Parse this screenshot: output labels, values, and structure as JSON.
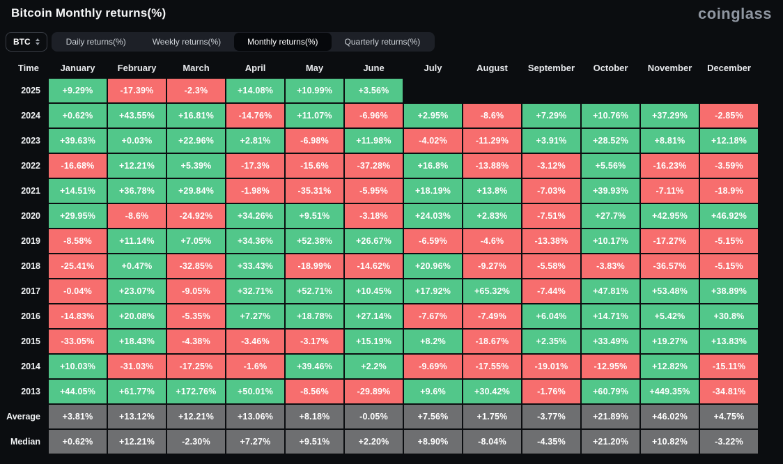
{
  "page": {
    "title": "Bitcoin Monthly returns(%)",
    "logo": "coinglass"
  },
  "toolbar": {
    "symbol_select": {
      "value": "BTC",
      "icon": "updown-chevron-icon"
    },
    "tabs": [
      {
        "label": "Daily returns(%)",
        "active": false
      },
      {
        "label": "Weekly returns(%)",
        "active": false
      },
      {
        "label": "Monthly returns(%)",
        "active": true
      },
      {
        "label": "Quarterly returns(%)",
        "active": false
      }
    ]
  },
  "colors": {
    "bg": "#0b0d10",
    "positive": "#52c78a",
    "negative": "#f76e6e",
    "summary": "#6e6f71",
    "tabbar_bg": "#1d2027",
    "active_tab_bg": "#06080b"
  },
  "table": {
    "time_header": "Time",
    "columns": [
      "January",
      "February",
      "March",
      "April",
      "May",
      "June",
      "July",
      "August",
      "September",
      "October",
      "November",
      "December"
    ],
    "rows": [
      {
        "time": "2025",
        "type": "year",
        "values": [
          "+9.29%",
          "-17.39%",
          "-2.3%",
          "+14.08%",
          "+10.99%",
          "+3.56%",
          null,
          null,
          null,
          null,
          null,
          null
        ]
      },
      {
        "time": "2024",
        "type": "year",
        "values": [
          "+0.62%",
          "+43.55%",
          "+16.81%",
          "-14.76%",
          "+11.07%",
          "-6.96%",
          "+2.95%",
          "-8.6%",
          "+7.29%",
          "+10.76%",
          "+37.29%",
          "-2.85%"
        ]
      },
      {
        "time": "2023",
        "type": "year",
        "values": [
          "+39.63%",
          "+0.03%",
          "+22.96%",
          "+2.81%",
          "-6.98%",
          "+11.98%",
          "-4.02%",
          "-11.29%",
          "+3.91%",
          "+28.52%",
          "+8.81%",
          "+12.18%"
        ]
      },
      {
        "time": "2022",
        "type": "year",
        "values": [
          "-16.68%",
          "+12.21%",
          "+5.39%",
          "-17.3%",
          "-15.6%",
          "-37.28%",
          "+16.8%",
          "-13.88%",
          "-3.12%",
          "+5.56%",
          "-16.23%",
          "-3.59%"
        ]
      },
      {
        "time": "2021",
        "type": "year",
        "values": [
          "+14.51%",
          "+36.78%",
          "+29.84%",
          "-1.98%",
          "-35.31%",
          "-5.95%",
          "+18.19%",
          "+13.8%",
          "-7.03%",
          "+39.93%",
          "-7.11%",
          "-18.9%"
        ]
      },
      {
        "time": "2020",
        "type": "year",
        "values": [
          "+29.95%",
          "-8.6%",
          "-24.92%",
          "+34.26%",
          "+9.51%",
          "-3.18%",
          "+24.03%",
          "+2.83%",
          "-7.51%",
          "+27.7%",
          "+42.95%",
          "+46.92%"
        ]
      },
      {
        "time": "2019",
        "type": "year",
        "values": [
          "-8.58%",
          "+11.14%",
          "+7.05%",
          "+34.36%",
          "+52.38%",
          "+26.67%",
          "-6.59%",
          "-4.6%",
          "-13.38%",
          "+10.17%",
          "-17.27%",
          "-5.15%"
        ]
      },
      {
        "time": "2018",
        "type": "year",
        "values": [
          "-25.41%",
          "+0.47%",
          "-32.85%",
          "+33.43%",
          "-18.99%",
          "-14.62%",
          "+20.96%",
          "-9.27%",
          "-5.58%",
          "-3.83%",
          "-36.57%",
          "-5.15%"
        ]
      },
      {
        "time": "2017",
        "type": "year",
        "values": [
          "-0.04%",
          "+23.07%",
          "-9.05%",
          "+32.71%",
          "+52.71%",
          "+10.45%",
          "+17.92%",
          "+65.32%",
          "-7.44%",
          "+47.81%",
          "+53.48%",
          "+38.89%"
        ]
      },
      {
        "time": "2016",
        "type": "year",
        "values": [
          "-14.83%",
          "+20.08%",
          "-5.35%",
          "+7.27%",
          "+18.78%",
          "+27.14%",
          "-7.67%",
          "-7.49%",
          "+6.04%",
          "+14.71%",
          "+5.42%",
          "+30.8%"
        ]
      },
      {
        "time": "2015",
        "type": "year",
        "values": [
          "-33.05%",
          "+18.43%",
          "-4.38%",
          "-3.46%",
          "-3.17%",
          "+15.19%",
          "+8.2%",
          "-18.67%",
          "+2.35%",
          "+33.49%",
          "+19.27%",
          "+13.83%"
        ]
      },
      {
        "time": "2014",
        "type": "year",
        "values": [
          "+10.03%",
          "-31.03%",
          "-17.25%",
          "-1.6%",
          "+39.46%",
          "+2.2%",
          "-9.69%",
          "-17.55%",
          "-19.01%",
          "-12.95%",
          "+12.82%",
          "-15.11%"
        ]
      },
      {
        "time": "2013",
        "type": "year",
        "values": [
          "+44.05%",
          "+61.77%",
          "+172.76%",
          "+50.01%",
          "-8.56%",
          "-29.89%",
          "+9.6%",
          "+30.42%",
          "-1.76%",
          "+60.79%",
          "+449.35%",
          "-34.81%"
        ]
      },
      {
        "time": "Average",
        "type": "summary",
        "values": [
          "+3.81%",
          "+13.12%",
          "+12.21%",
          "+13.06%",
          "+8.18%",
          "-0.05%",
          "+7.56%",
          "+1.75%",
          "-3.77%",
          "+21.89%",
          "+46.02%",
          "+4.75%"
        ]
      },
      {
        "time": "Median",
        "type": "summary",
        "values": [
          "+0.62%",
          "+12.21%",
          "-2.30%",
          "+7.27%",
          "+9.51%",
          "+2.20%",
          "+8.90%",
          "-8.04%",
          "-4.35%",
          "+21.20%",
          "+10.82%",
          "-3.22%"
        ]
      }
    ]
  }
}
